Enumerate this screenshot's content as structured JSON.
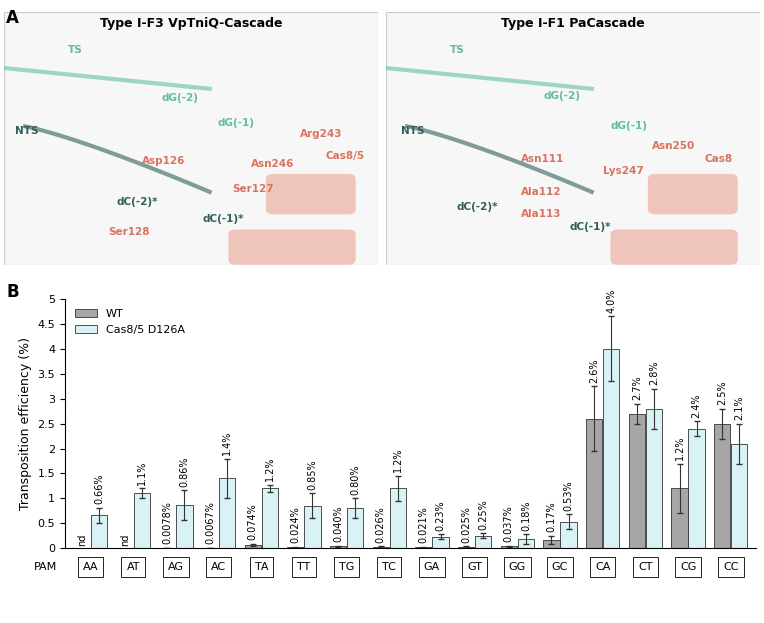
{
  "panel_labels": [
    "A",
    "B"
  ],
  "structures": [
    {
      "title": "Type I-F3 VpTniQ-Cascade",
      "labels": [
        "NTS",
        "TS",
        "dG(-2)",
        "dG(-1)",
        "Arg243",
        "Cas8/5",
        "Asp126",
        "Asn246",
        "Ser127",
        "dC(-2)*",
        "dC(-1)*",
        "Ser128"
      ]
    },
    {
      "title": "Type I-F1 PaCascade",
      "labels": [
        "NTS",
        "TS",
        "dG(-2)",
        "dG(-1)",
        "Asn250",
        "Cas8",
        "Lys247",
        "Asn111",
        "Ala112",
        "dC(-2)*",
        "Ala113",
        "dC(-1)*"
      ]
    }
  ],
  "chart_data": {
    "type": "bar",
    "y_label": "Transposition efficiency (%)",
    "x_label": "PAM",
    "categories": [
      "AA",
      "AT",
      "AG",
      "AC",
      "TA",
      "TT",
      "TG",
      "TC",
      "GA",
      "GT",
      "GG",
      "GC",
      "CA",
      "CT",
      "CG",
      "CC"
    ],
    "ylim": [
      0,
      5
    ],
    "yticks": [
      0,
      0.5,
      1,
      1.5,
      2,
      2.5,
      3,
      3.5,
      4,
      4.5,
      5
    ],
    "legend": "upper left",
    "data_labels": true,
    "series": [
      {
        "name": "WT",
        "color": "#a6a6a6",
        "values": [
          null,
          null,
          0.0078,
          0.0067,
          0.074,
          0.024,
          0.04,
          0.026,
          0.021,
          0.025,
          0.037,
          0.17,
          2.6,
          2.7,
          1.2,
          2.5
        ],
        "value_labels": [
          "nd",
          "nd",
          "0.0078%",
          "0.0067%",
          "0.074%",
          "0.024%",
          "0.040%",
          "0.026%",
          "0.021%",
          "0.025%",
          "0.037%",
          "0.17%",
          "2.6%",
          "2.7%",
          "1.2%",
          "2.5%"
        ],
        "errors": [
          null,
          null,
          0.005,
          0.005,
          0.02,
          0.01,
          0.01,
          0.01,
          0.01,
          0.01,
          0.01,
          0.08,
          0.65,
          0.2,
          0.5,
          0.3
        ]
      },
      {
        "name": "Cas8/5 D126A",
        "color": "#d9f2f5",
        "values": [
          0.66,
          1.1,
          0.86,
          1.4,
          1.2,
          0.85,
          0.8,
          1.2,
          0.23,
          0.25,
          0.18,
          0.53,
          4.0,
          2.8,
          2.4,
          2.1
        ],
        "value_labels": [
          "0.66%",
          "1.1%",
          "0.86%",
          "1.4%",
          "1.2%",
          "0.85%",
          "0.80%",
          "1.2%",
          "0.23%",
          "0.25%",
          "0.18%",
          "0.53%",
          "4.0%",
          "2.8%",
          "2.4%",
          "2.1%"
        ],
        "errors": [
          0.15,
          0.1,
          0.3,
          0.4,
          0.07,
          0.25,
          0.2,
          0.25,
          0.05,
          0.05,
          0.1,
          0.15,
          0.65,
          0.4,
          0.15,
          0.4
        ]
      }
    ]
  }
}
